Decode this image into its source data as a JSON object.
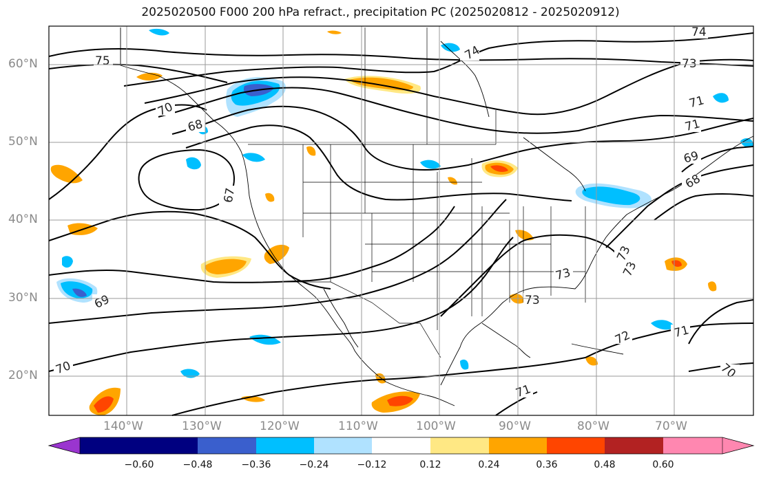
{
  "title": "2025020500 F000 200 hPa refract., precipitation PC (2025020812 - 2025020912)",
  "latitude_labels": [
    "60°N",
    "50°N",
    "40°N",
    "30°N",
    "20°N"
  ],
  "longitude_labels": [
    "140°W",
    "130°W",
    "120°W",
    "110°W",
    "100°W",
    "90°W",
    "80°W",
    "70°W"
  ],
  "contour_labels": [
    "75",
    "74",
    "74",
    "73",
    "71",
    "71",
    "70",
    "68",
    "67",
    "69",
    "69",
    "68",
    "73",
    "73",
    "73",
    "73",
    "72",
    "71",
    "70",
    "70",
    "71"
  ],
  "colorbar": {
    "tick_labels": [
      "−0.60",
      "−0.48",
      "−0.36",
      "−0.24",
      "−0.12",
      "0.12",
      "0.24",
      "0.36",
      "0.48",
      "0.60"
    ],
    "colors": [
      "#9a35cf",
      "#000080",
      "#3a5fcd",
      "#00bfff",
      "#b0e2ff",
      "#ffffff",
      "#ffe884",
      "#ffa500",
      "#ff4500",
      "#b22222",
      "#ff87b0"
    ]
  }
}
